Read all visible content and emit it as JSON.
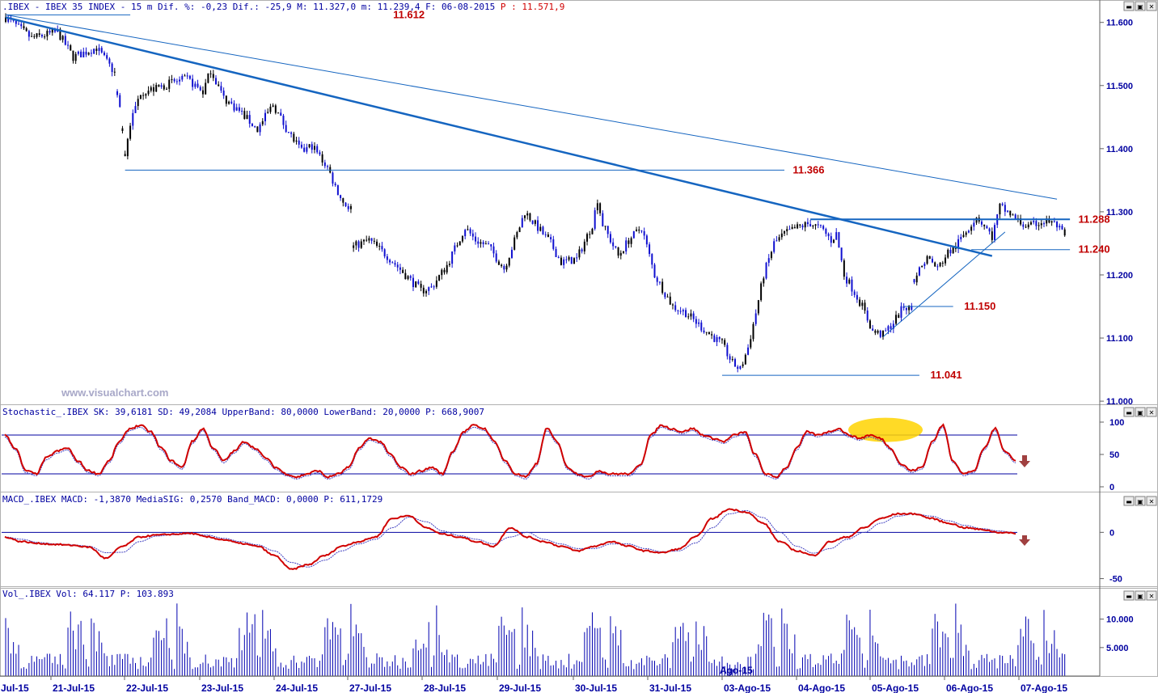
{
  "header": {
    "price": ".IBEX - IBEX 35 INDEX -  15 m Dif. %: -0,23 Dif.: -25,9 M: 11.327,0 m: 11.239,4 F: 06-08-2015",
    "price_p": "P : 11.571,9",
    "stoch": "Stochastic_.IBEX SK: 39,6181 SD: 49,2084 UpperBand: 80,0000 LowerBand: 20,0000 P: 668,9007",
    "macd": "MACD_.IBEX MACD: -1,3870 MediaSIG: 0,2570 Band_MACD: 0,0000 P: 611,1729",
    "vol": "Vol_.IBEX Vol: 64.117 P: 103.893"
  },
  "watermark": "www.visualchart.com",
  "cursor_label": "Ago-15",
  "colors": {
    "axis": "#0000a0",
    "level": "#c00000",
    "trend": "#1565c0",
    "stoch": "#d00000",
    "vol": "#0000b0",
    "arrow": "#a04040",
    "highlight": "#ffd400"
  },
  "chart_data": [
    {
      "type": "candlestick",
      "panel": "price",
      "title": "IBEX 35 INDEX - 15 m",
      "x_labels": [
        "Jul-15",
        "21-Jul-15",
        "22-Jul-15",
        "23-Jul-15",
        "24-Jul-15",
        "27-Jul-15",
        "28-Jul-15",
        "29-Jul-15",
        "30-Jul-15",
        "31-Jul-15",
        "03-Ago-15",
        "04-Ago-15",
        "05-Ago-15",
        "06-Ago-15",
        "07-Ago-15"
      ],
      "y_ticks": [
        "11.600",
        "11.500",
        "11.400",
        "11.300",
        "11.200",
        "11.100",
        "11.000"
      ],
      "ylim": [
        10995,
        11615
      ],
      "anchors": [
        [
          0,
          11608
        ],
        [
          10,
          11575
        ],
        [
          20,
          11585
        ],
        [
          26,
          11545
        ],
        [
          35,
          11560
        ],
        [
          42,
          11520
        ],
        [
          44,
          11460
        ],
        [
          45,
          11430
        ],
        [
          46,
          11390
        ],
        [
          48,
          11440
        ],
        [
          52,
          11490
        ],
        [
          58,
          11495
        ],
        [
          64,
          11505
        ],
        [
          70,
          11510
        ],
        [
          76,
          11490
        ],
        [
          79,
          11525
        ],
        [
          84,
          11480
        ],
        [
          90,
          11460
        ],
        [
          97,
          11430
        ],
        [
          103,
          11470
        ],
        [
          107,
          11440
        ],
        [
          110,
          11420
        ],
        [
          114,
          11395
        ],
        [
          118,
          11405
        ],
        [
          124,
          11370
        ],
        [
          127,
          11340
        ],
        [
          130,
          11315
        ],
        [
          133,
          11305
        ],
        [
          134,
          11245
        ],
        [
          140,
          11255
        ],
        [
          147,
          11230
        ],
        [
          154,
          11200
        ],
        [
          160,
          11175
        ],
        [
          164,
          11180
        ],
        [
          170,
          11215
        ],
        [
          174,
          11250
        ],
        [
          177,
          11275
        ],
        [
          181,
          11255
        ],
        [
          186,
          11245
        ],
        [
          192,
          11210
        ],
        [
          197,
          11265
        ],
        [
          200,
          11300
        ],
        [
          205,
          11275
        ],
        [
          210,
          11250
        ],
        [
          214,
          11220
        ],
        [
          220,
          11225
        ],
        [
          226,
          11280
        ],
        [
          228,
          11320
        ],
        [
          230,
          11280
        ],
        [
          236,
          11230
        ],
        [
          240,
          11255
        ],
        [
          245,
          11275
        ],
        [
          250,
          11200
        ],
        [
          257,
          11150
        ],
        [
          262,
          11140
        ],
        [
          270,
          11110
        ],
        [
          276,
          11090
        ],
        [
          280,
          11060
        ],
        [
          283,
          11050
        ],
        [
          286,
          11085
        ],
        [
          289,
          11140
        ],
        [
          292,
          11200
        ],
        [
          296,
          11250
        ],
        [
          300,
          11265
        ],
        [
          305,
          11275
        ],
        [
          310,
          11282
        ],
        [
          315,
          11270
        ],
        [
          318,
          11255
        ],
        [
          320,
          11265
        ],
        [
          323,
          11200
        ],
        [
          326,
          11180
        ],
        [
          330,
          11150
        ],
        [
          334,
          11110
        ],
        [
          338,
          11105
        ],
        [
          342,
          11125
        ],
        [
          346,
          11150
        ],
        [
          349,
          11145
        ],
        [
          350,
          11195
        ],
        [
          355,
          11228
        ],
        [
          359,
          11210
        ],
        [
          363,
          11235
        ],
        [
          366,
          11245
        ],
        [
          370,
          11270
        ],
        [
          374,
          11293
        ],
        [
          377,
          11278
        ],
        [
          380,
          11260
        ],
        [
          383,
          11308
        ],
        [
          386,
          11300
        ],
        [
          390,
          11285
        ],
        [
          394,
          11275
        ],
        [
          398,
          11283
        ],
        [
          402,
          11285
        ],
        [
          405,
          11278
        ],
        [
          408,
          11260
        ]
      ],
      "levels": [
        {
          "label": "11.612",
          "value": 11612
        },
        {
          "label": "11.366",
          "value": 11366
        },
        {
          "label": "11.288",
          "value": 11288
        },
        {
          "label": "11.240",
          "value": 11240
        },
        {
          "label": "11.150",
          "value": 11150
        },
        {
          "label": "11.041",
          "value": 11041
        }
      ]
    },
    {
      "type": "line",
      "panel": "stochastic",
      "y_ticks": [
        "100",
        "50",
        "0"
      ],
      "ylim": [
        0,
        100
      ],
      "bands": [
        80,
        20
      ],
      "series": [
        {
          "values": [
            80,
            60,
            25,
            20,
            45,
            55,
            60,
            40,
            25,
            20,
            40,
            70,
            90,
            95,
            85,
            60,
            40,
            30,
            70,
            90,
            60,
            40,
            55,
            70,
            60,
            45,
            30,
            20,
            15,
            20,
            25,
            15,
            20,
            30,
            60,
            75,
            70,
            50,
            30,
            20,
            25,
            30,
            20,
            55,
            85,
            95,
            90,
            70,
            40,
            20,
            15,
            35,
            90,
            70,
            30,
            20,
            15,
            25,
            20,
            20,
            20,
            35,
            80,
            95,
            90,
            85,
            90,
            80,
            75,
            70,
            80,
            85,
            50,
            20,
            15,
            30,
            60,
            85,
            80,
            85,
            90,
            80,
            75,
            80,
            75,
            60,
            35,
            25,
            30,
            70,
            95,
            40,
            20,
            25,
            60,
            90,
            55,
            40
          ]
        }
      ]
    },
    {
      "type": "line",
      "panel": "macd",
      "y_ticks": [
        "0",
        "-50"
      ],
      "ylim": [
        -60,
        30
      ],
      "zero_line": 0,
      "series": [
        {
          "values": [
            -5,
            -10,
            -12,
            -13,
            -14,
            -16,
            -28,
            -15,
            -5,
            -3,
            -2,
            -1,
            -5,
            -8,
            -12,
            -15,
            -25,
            -40,
            -35,
            -25,
            -15,
            -10,
            -5,
            15,
            18,
            5,
            -2,
            -5,
            -10,
            -15,
            5,
            -5,
            -10,
            -15,
            -20,
            -15,
            -10,
            -15,
            -20,
            -22,
            -18,
            -5,
            15,
            25,
            22,
            10,
            -10,
            -20,
            -25,
            -10,
            -5,
            5,
            15,
            20,
            20,
            15,
            10,
            5,
            3,
            0,
            -1
          ]
        }
      ]
    },
    {
      "type": "bar",
      "panel": "volume",
      "y_ticks": [
        "10.000",
        "5.000"
      ],
      "ylim": [
        0,
        13500
      ],
      "values_note": "",
      "series": [
        {
          "values": []
        }
      ]
    }
  ]
}
